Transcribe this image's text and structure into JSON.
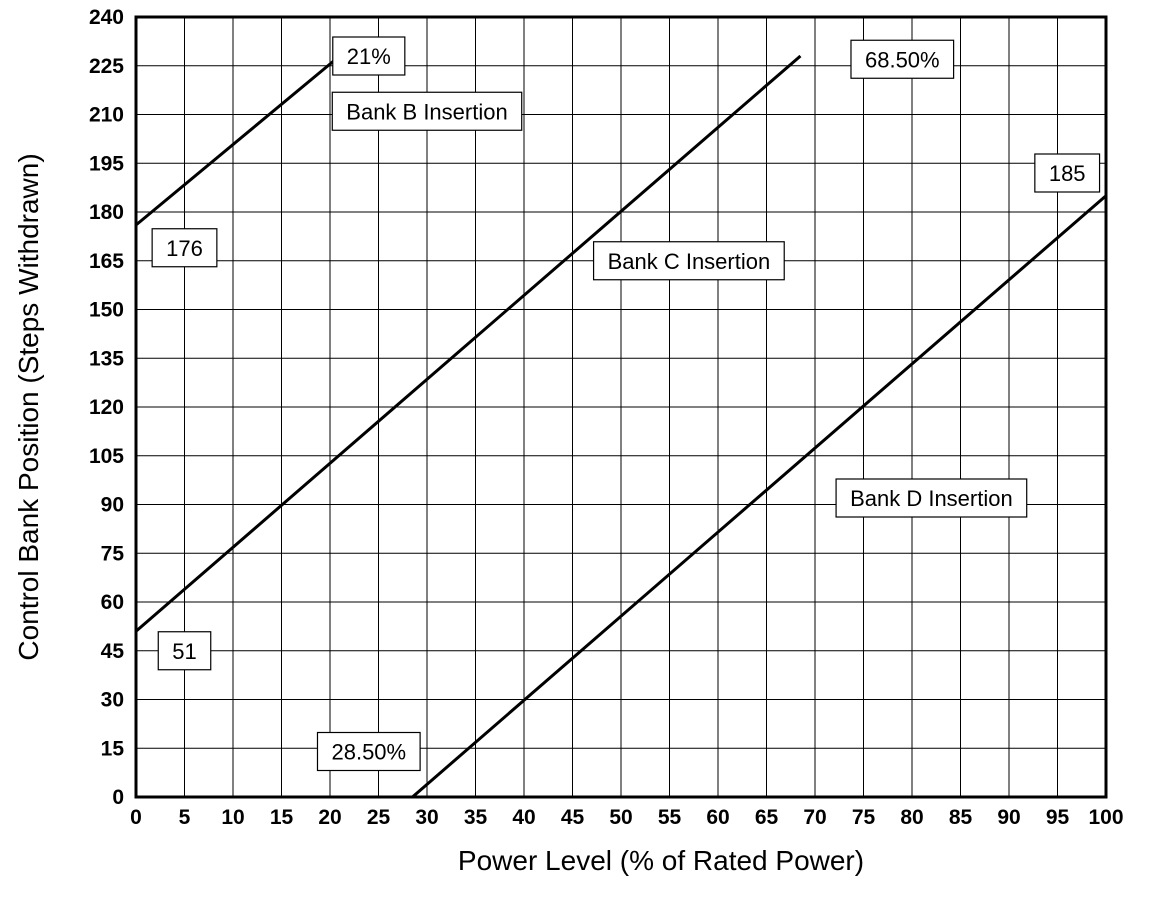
{
  "chart_data": {
    "type": "line",
    "xlabel": "Power Level (% of Rated Power)",
    "ylabel": "Control Bank Position (Steps Withdrawn)",
    "xlim": [
      0,
      100
    ],
    "ylim": [
      0,
      240
    ],
    "x_ticks": [
      "0",
      "5",
      "10",
      "15",
      "20",
      "25",
      "30",
      "35",
      "40",
      "45",
      "50",
      "55",
      "60",
      "65",
      "70",
      "75",
      "80",
      "85",
      "90",
      "95",
      "100"
    ],
    "y_ticks": [
      "0",
      "15",
      "30",
      "45",
      "60",
      "75",
      "90",
      "105",
      "120",
      "135",
      "150",
      "165",
      "180",
      "195",
      "210",
      "225",
      "240"
    ],
    "grid": true,
    "series": [
      {
        "name": "Bank B Insertion",
        "x": [
          0,
          21
        ],
        "y": [
          176,
          228
        ]
      },
      {
        "name": "Bank C Insertion",
        "x": [
          0,
          68.5
        ],
        "y": [
          51,
          228
        ]
      },
      {
        "name": "Bank D Insertion",
        "x": [
          28.5,
          100
        ],
        "y": [
          0,
          185
        ]
      }
    ],
    "annotations": [
      {
        "text": "21%",
        "x": 24,
        "y": 228
      },
      {
        "text": "Bank B Insertion",
        "x": 30,
        "y": 211
      },
      {
        "text": "176",
        "x": 5,
        "y": 169
      },
      {
        "text": "68.50%",
        "x": 79,
        "y": 227
      },
      {
        "text": "Bank C Insertion",
        "x": 57,
        "y": 165
      },
      {
        "text": "185",
        "x": 96,
        "y": 192
      },
      {
        "text": "Bank D Insertion",
        "x": 82,
        "y": 92
      },
      {
        "text": "51",
        "x": 5,
        "y": 45
      },
      {
        "text": "28.50%",
        "x": 24,
        "y": 14
      }
    ]
  }
}
